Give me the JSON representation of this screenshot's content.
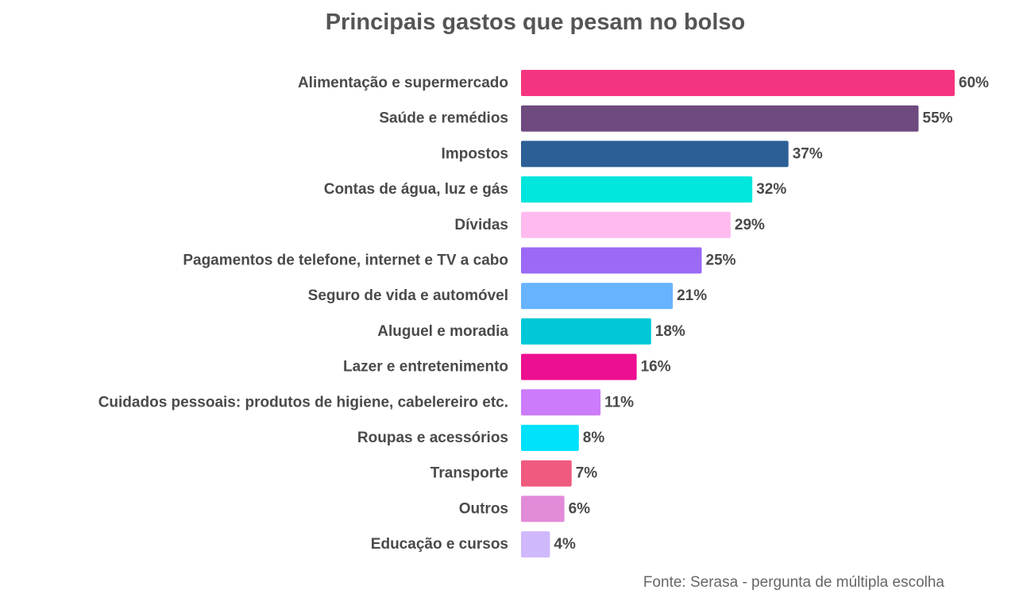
{
  "chart_data": {
    "type": "bar",
    "orientation": "horizontal",
    "title": "Principais gastos que pesam no bolso",
    "categories": [
      "Alimentação e supermercado",
      "Saúde e remédios",
      "Impostos",
      "Contas de água, luz e gás",
      "Dívidas",
      "Pagamentos de telefone, internet e TV a cabo",
      "Seguro de vida e automóvel",
      "Aluguel e moradia",
      "Lazer e entretenimento",
      "Cuidados pessoais: produtos de higiene, cabelereiro etc.",
      "Roupas e acessórios",
      "Transporte",
      "Outros",
      "Educação e cursos"
    ],
    "values": [
      60,
      55,
      37,
      32,
      29,
      25,
      21,
      18,
      16,
      11,
      8,
      7,
      6,
      4
    ],
    "value_labels": [
      "60%",
      "55%",
      "37%",
      "32%",
      "29%",
      "25%",
      "21%",
      "18%",
      "16%",
      "11%",
      "8%",
      "7%",
      "6%",
      "4%"
    ],
    "colors": [
      "#f5347f",
      "#6e4a7e",
      "#2c5f96",
      "#00e5dc",
      "#ffbbef",
      "#9b69f5",
      "#67b3ff",
      "#00c8d6",
      "#ec0f8f",
      "#cc7bfa",
      "#00e1fc",
      "#ef5a7e",
      "#e18bd9",
      "#d0b8fd"
    ],
    "xlim": [
      0,
      60
    ],
    "grid": false,
    "legend": "none",
    "source": "Fonte: Serasa - pergunta de múltipla escolha"
  }
}
